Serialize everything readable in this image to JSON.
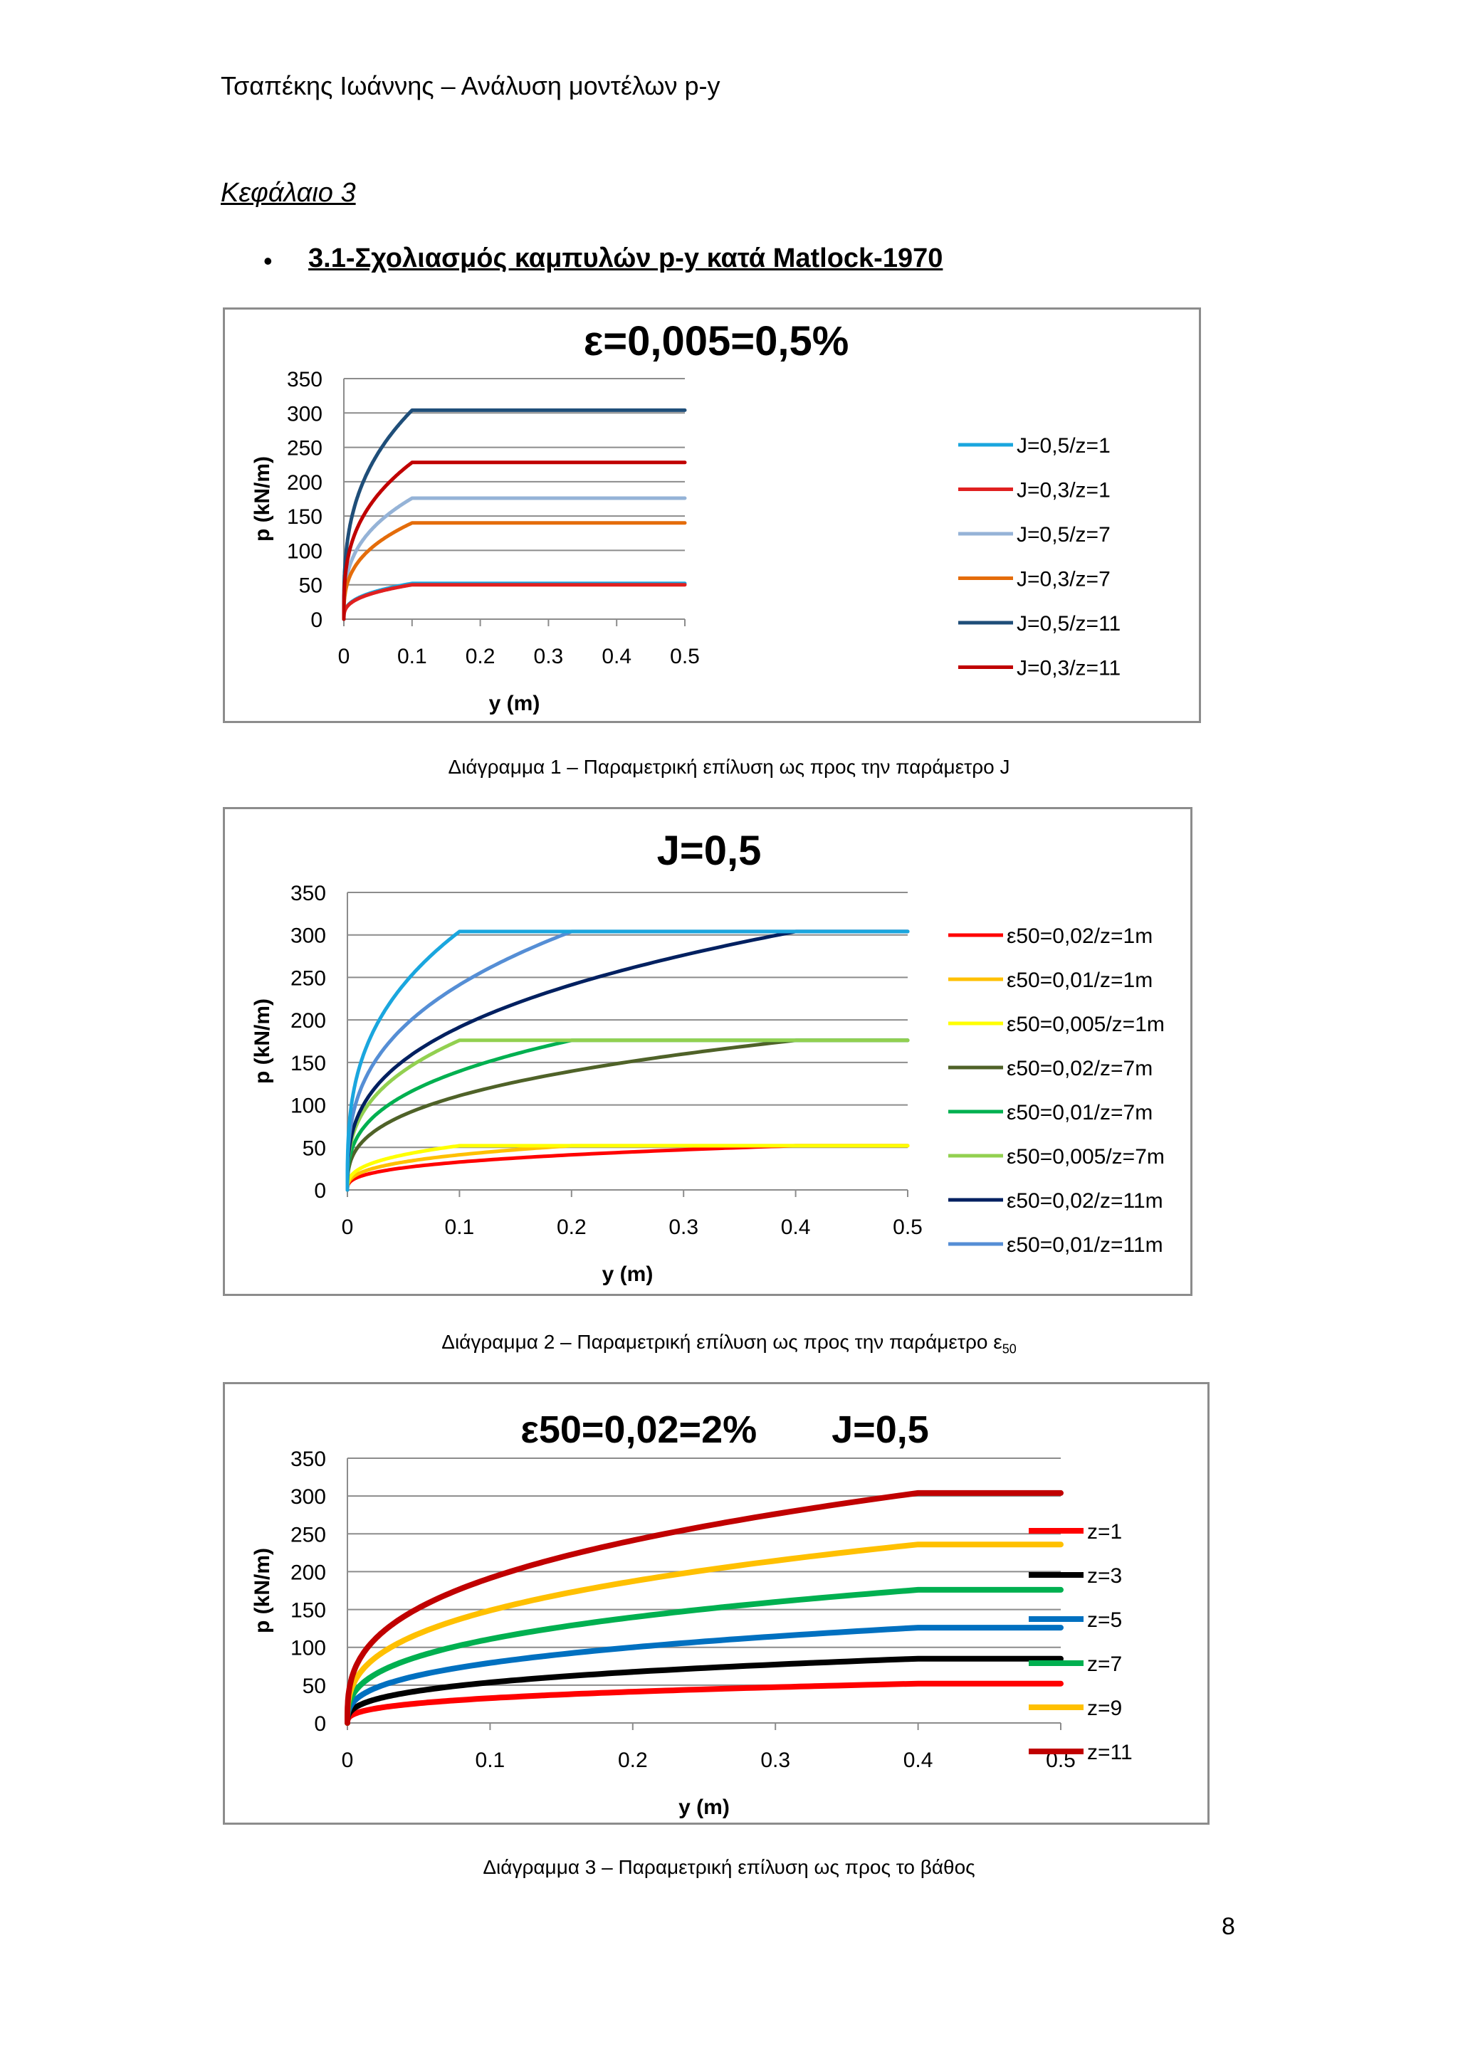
{
  "header": {
    "running_title": "Τσαπέκης Ιωάννης – Ανάλυση μοντέλων p-y"
  },
  "chapter": {
    "title": "Κεφάλαιο 3"
  },
  "section": {
    "bullet": "•",
    "title": "3.1-Σχολιασμός καμπυλών p-y κατά Matlock-1970"
  },
  "captions": {
    "c1": "Διάγραμμα 1 – Παραμετρική επίλυση ως προς την παράμετρο J",
    "c2_main": "Διάγραμμα 2 – Παραμετρική επίλυση ως προς την παράμετρο ε",
    "c2_sub": "50",
    "c3": "Διάγραμμα 3 – Παραμετρική επίλυση ως προς το βάθος"
  },
  "page_number": "8",
  "chart_data": [
    {
      "type": "line",
      "title": "ε=0,005=0,5%",
      "xlabel": "y (m)",
      "ylabel": "p (kN/m)",
      "xlim": [
        0,
        0.5
      ],
      "ylim": [
        0,
        350
      ],
      "xticks": [
        "0",
        "0.1",
        "0.2",
        "0.3",
        "0.4",
        "0.5"
      ],
      "yticks": [
        "0",
        "50",
        "100",
        "150",
        "200",
        "250",
        "300",
        "350"
      ],
      "grid": "horizontal",
      "legend": "right",
      "series": [
        {
          "name": "J=0,5/z=1",
          "color": "#1aa6de",
          "pu": 52,
          "y50": 0.0125
        },
        {
          "name": "J=0,3/z=1",
          "color": "#e02020",
          "pu": 50,
          "y50": 0.0125
        },
        {
          "name": "J=0,5/z=7",
          "color": "#95b3d7",
          "pu": 176,
          "y50": 0.0125
        },
        {
          "name": "J=0,3/z=7",
          "color": "#e46c0a",
          "pu": 140,
          "y50": 0.0125
        },
        {
          "name": "J=0,5/z=11",
          "color": "#1f4e79",
          "pu": 304,
          "y50": 0.0125
        },
        {
          "name": "J=0,3/z=11",
          "color": "#c00000",
          "pu": 228,
          "y50": 0.0125
        }
      ]
    },
    {
      "type": "line",
      "title": "J=0,5",
      "xlabel": "y (m)",
      "ylabel": "p (kN/m)",
      "xlim": [
        0,
        0.5
      ],
      "ylim": [
        0,
        350
      ],
      "xticks": [
        "0",
        "0.1",
        "0.2",
        "0.3",
        "0.4",
        "0.5"
      ],
      "yticks": [
        "0",
        "50",
        "100",
        "150",
        "200",
        "250",
        "300",
        "350"
      ],
      "grid": "horizontal",
      "legend": "right",
      "series": [
        {
          "name": "ε50=0,02/z=1m",
          "color": "#ff0000",
          "pu": 52,
          "y50": 0.05
        },
        {
          "name": "ε50=0,01/z=1m",
          "color": "#ffc000",
          "pu": 52,
          "y50": 0.025
        },
        {
          "name": "ε50=0,005/z=1m",
          "color": "#ffff00",
          "pu": 52,
          "y50": 0.0125
        },
        {
          "name": "ε50=0,02/z=7m",
          "color": "#4f6228",
          "pu": 176,
          "y50": 0.05
        },
        {
          "name": "ε50=0,01/z=7m",
          "color": "#00b050",
          "pu": 176,
          "y50": 0.025
        },
        {
          "name": "ε50=0,005/z=7m",
          "color": "#92d050",
          "pu": 176,
          "y50": 0.0125
        },
        {
          "name": "ε50=0,02/z=11m",
          "color": "#002060",
          "pu": 304,
          "y50": 0.05
        },
        {
          "name": "ε50=0,01/z=11m",
          "color": "#558ed5",
          "pu": 304,
          "y50": 0.025
        },
        {
          "name": "",
          "color": "#1aa6de",
          "pu": 304,
          "y50": 0.0125
        }
      ]
    },
    {
      "type": "line",
      "title": "ε50=0,02=2%       J=0,5",
      "xlabel": "y (m)",
      "ylabel": "p (kN/m)",
      "xlim": [
        0,
        0.5
      ],
      "ylim": [
        0,
        350
      ],
      "xticks": [
        "0",
        "0.1",
        "0.2",
        "0.3",
        "0.4",
        "0.5"
      ],
      "yticks": [
        "0",
        "50",
        "100",
        "150",
        "200",
        "250",
        "300",
        "350"
      ],
      "grid": "horizontal",
      "legend": "right",
      "series": [
        {
          "name": "z=1",
          "color": "#ff0000",
          "pu": 52,
          "y50": 0.05
        },
        {
          "name": "z=3",
          "color": "#000000",
          "pu": 85,
          "y50": 0.05
        },
        {
          "name": "z=5",
          "color": "#0070c0",
          "pu": 126,
          "y50": 0.05
        },
        {
          "name": "z=7",
          "color": "#00b050",
          "pu": 176,
          "y50": 0.05
        },
        {
          "name": "z=9",
          "color": "#ffc000",
          "pu": 236,
          "y50": 0.05
        },
        {
          "name": "z=11",
          "color": "#c00000",
          "pu": 304,
          "y50": 0.05
        }
      ]
    }
  ]
}
